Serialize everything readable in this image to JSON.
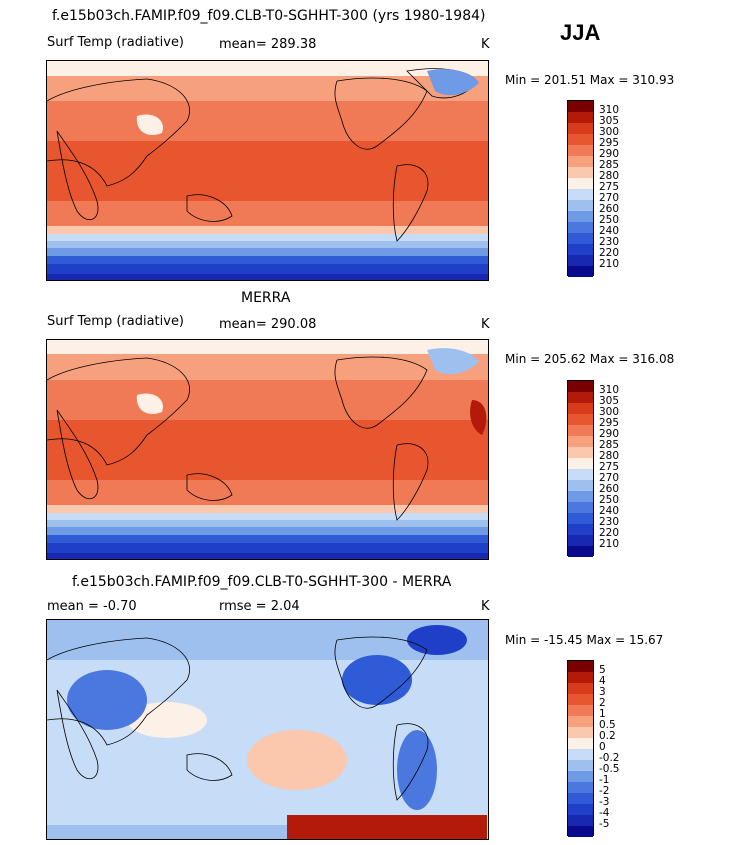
{
  "season": "JJA",
  "panels": [
    {
      "title": "f.e15b03ch.FAMIP.f09_f09.CLB-T0-SGHHT-300 (yrs 1980-1984)",
      "variable": "Surf Temp (radiative)",
      "stat1": "mean=  289.38",
      "stat2": "",
      "units": "K",
      "minmax": "Min = 201.51  Max = 310.93",
      "colorbar": {
        "colors": [
          "#7a0000",
          "#b31a0a",
          "#d83a1c",
          "#e8562f",
          "#f07a55",
          "#f6a07e",
          "#fbc8ad",
          "#fdf0e6",
          "#c7dcf6",
          "#9ec0ef",
          "#6e9ae6",
          "#4b78df",
          "#2f5bd6",
          "#1f3fc8",
          "#1828b0",
          "#0a0a8c"
        ],
        "labels": [
          "310",
          "305",
          "300",
          "295",
          "290",
          "285",
          "280",
          "275",
          "270",
          "260",
          "250",
          "240",
          "230",
          "220",
          "210"
        ]
      }
    },
    {
      "title": "MERRA",
      "variable": "Surf Temp (radiative)",
      "stat1": "mean=  290.08",
      "stat2": "",
      "units": "K",
      "minmax": "Min = 205.62  Max = 316.08",
      "colorbar": {
        "colors": [
          "#7a0000",
          "#b31a0a",
          "#d83a1c",
          "#e8562f",
          "#f07a55",
          "#f6a07e",
          "#fbc8ad",
          "#fdf0e6",
          "#c7dcf6",
          "#9ec0ef",
          "#6e9ae6",
          "#4b78df",
          "#2f5bd6",
          "#1f3fc8",
          "#1828b0",
          "#0a0a8c"
        ],
        "labels": [
          "310",
          "305",
          "300",
          "295",
          "290",
          "285",
          "280",
          "275",
          "270",
          "260",
          "250",
          "240",
          "230",
          "220",
          "210"
        ]
      }
    },
    {
      "title": "f.e15b03ch.FAMIP.f09_f09.CLB-T0-SGHHT-300 - MERRA",
      "variable": "mean =   -0.70",
      "stat1": "rmse =    2.04",
      "stat2": "",
      "units": "K",
      "minmax": "Min = -15.45  Max =  15.67",
      "colorbar": {
        "colors": [
          "#7a0000",
          "#b31a0a",
          "#d83a1c",
          "#e8562f",
          "#f07a55",
          "#f6a07e",
          "#fbc8ad",
          "#fdf0e6",
          "#c7dcf6",
          "#9ec0ef",
          "#6e9ae6",
          "#4b78df",
          "#2f5bd6",
          "#1f3fc8",
          "#1828b0",
          "#0a0a8c"
        ],
        "labels": [
          "5",
          "4",
          "3",
          "2",
          "1",
          "0.5",
          "0.2",
          "0",
          "-0.2",
          "-0.5",
          "-1",
          "-2",
          "-3",
          "-4",
          "-5"
        ]
      }
    }
  ]
}
